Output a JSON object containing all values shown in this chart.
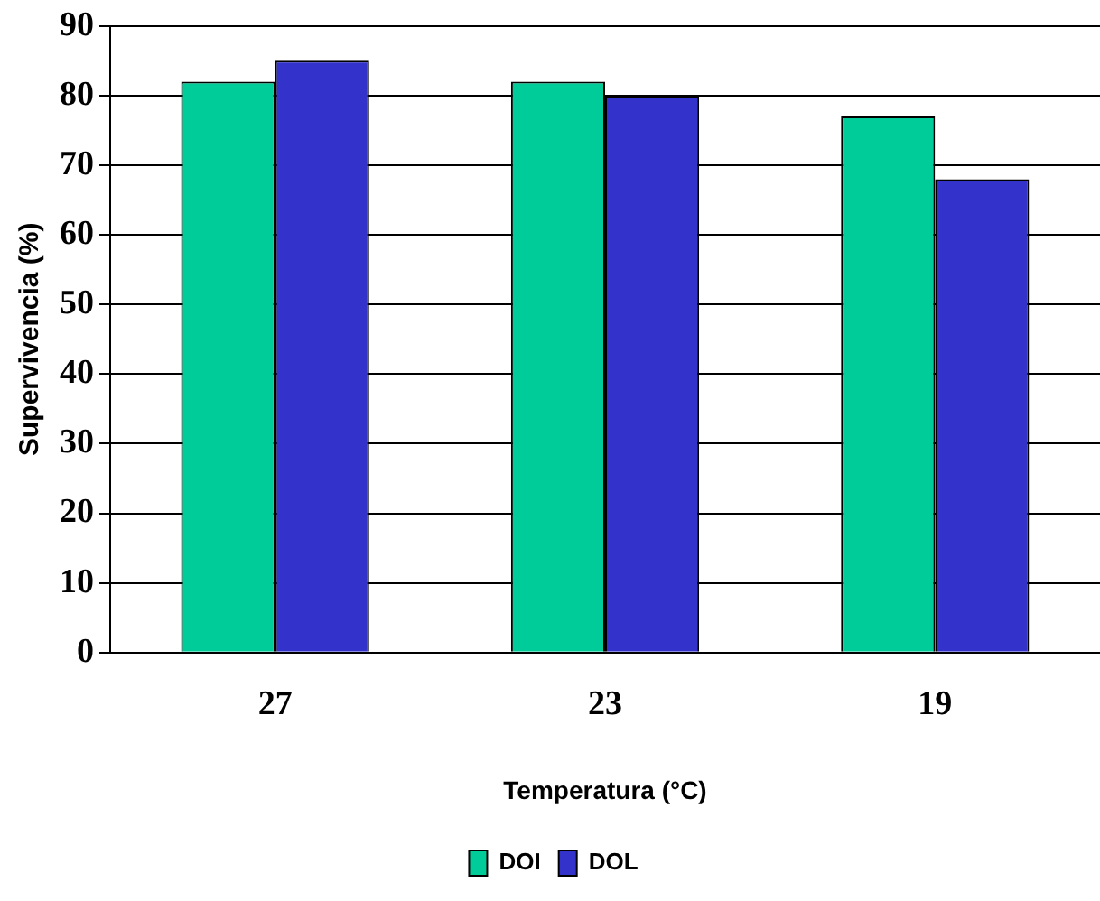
{
  "chart_data": {
    "type": "bar",
    "xlabel": "Temperatura (°C)",
    "ylabel": "Supervivencia (%)",
    "categories": [
      "27",
      "23",
      "19"
    ],
    "series": [
      {
        "name": "DOI",
        "color": "#00cc99",
        "values": [
          82,
          82,
          77
        ]
      },
      {
        "name": "DOL",
        "color": "#3333cc",
        "values": [
          85,
          80,
          68
        ]
      }
    ],
    "ylim": [
      0,
      90
    ],
    "yticks": [
      0,
      10,
      20,
      30,
      40,
      50,
      60,
      70,
      80,
      90
    ],
    "grid": "y",
    "legend": "bottom"
  }
}
